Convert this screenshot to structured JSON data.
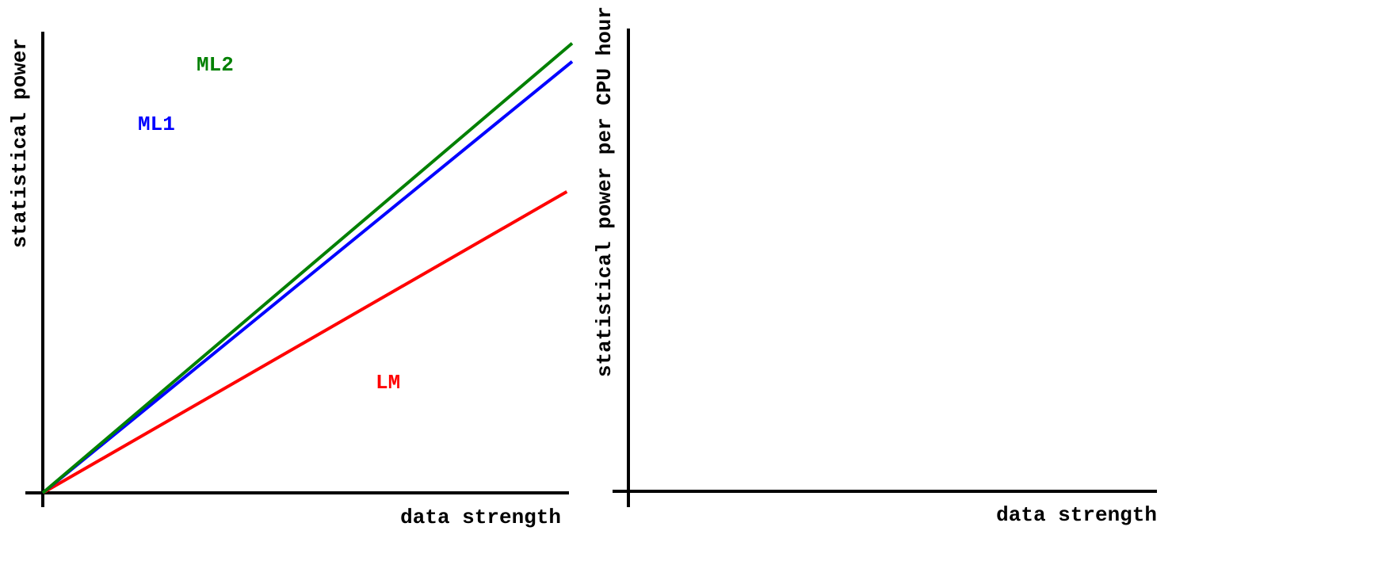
{
  "colors": {
    "axis": "#000000",
    "LM": "#ff0000",
    "ML1": "#0000ff",
    "ML2": "#008000",
    "background": "#ffffff"
  },
  "chart_data": [
    {
      "type": "line",
      "xlabel": "data strength",
      "ylabel": "statistical power",
      "grid": false,
      "xlim": [
        0,
        1
      ],
      "ylim": [
        0,
        1
      ],
      "series": [
        {
          "name": "ML2",
          "color": "#008000",
          "x": [
            0,
            1
          ],
          "y": [
            0,
            0.985
          ]
        },
        {
          "name": "ML1",
          "color": "#0000ff",
          "x": [
            0,
            1
          ],
          "y": [
            0,
            0.945
          ]
        },
        {
          "name": "LM",
          "color": "#ff0000",
          "x": [
            0,
            0.99
          ],
          "y": [
            0,
            0.66
          ]
        }
      ]
    },
    {
      "type": "line",
      "xlabel": "data strength",
      "ylabel": "statistical power per CPU hour",
      "grid": false,
      "series": []
    }
  ]
}
